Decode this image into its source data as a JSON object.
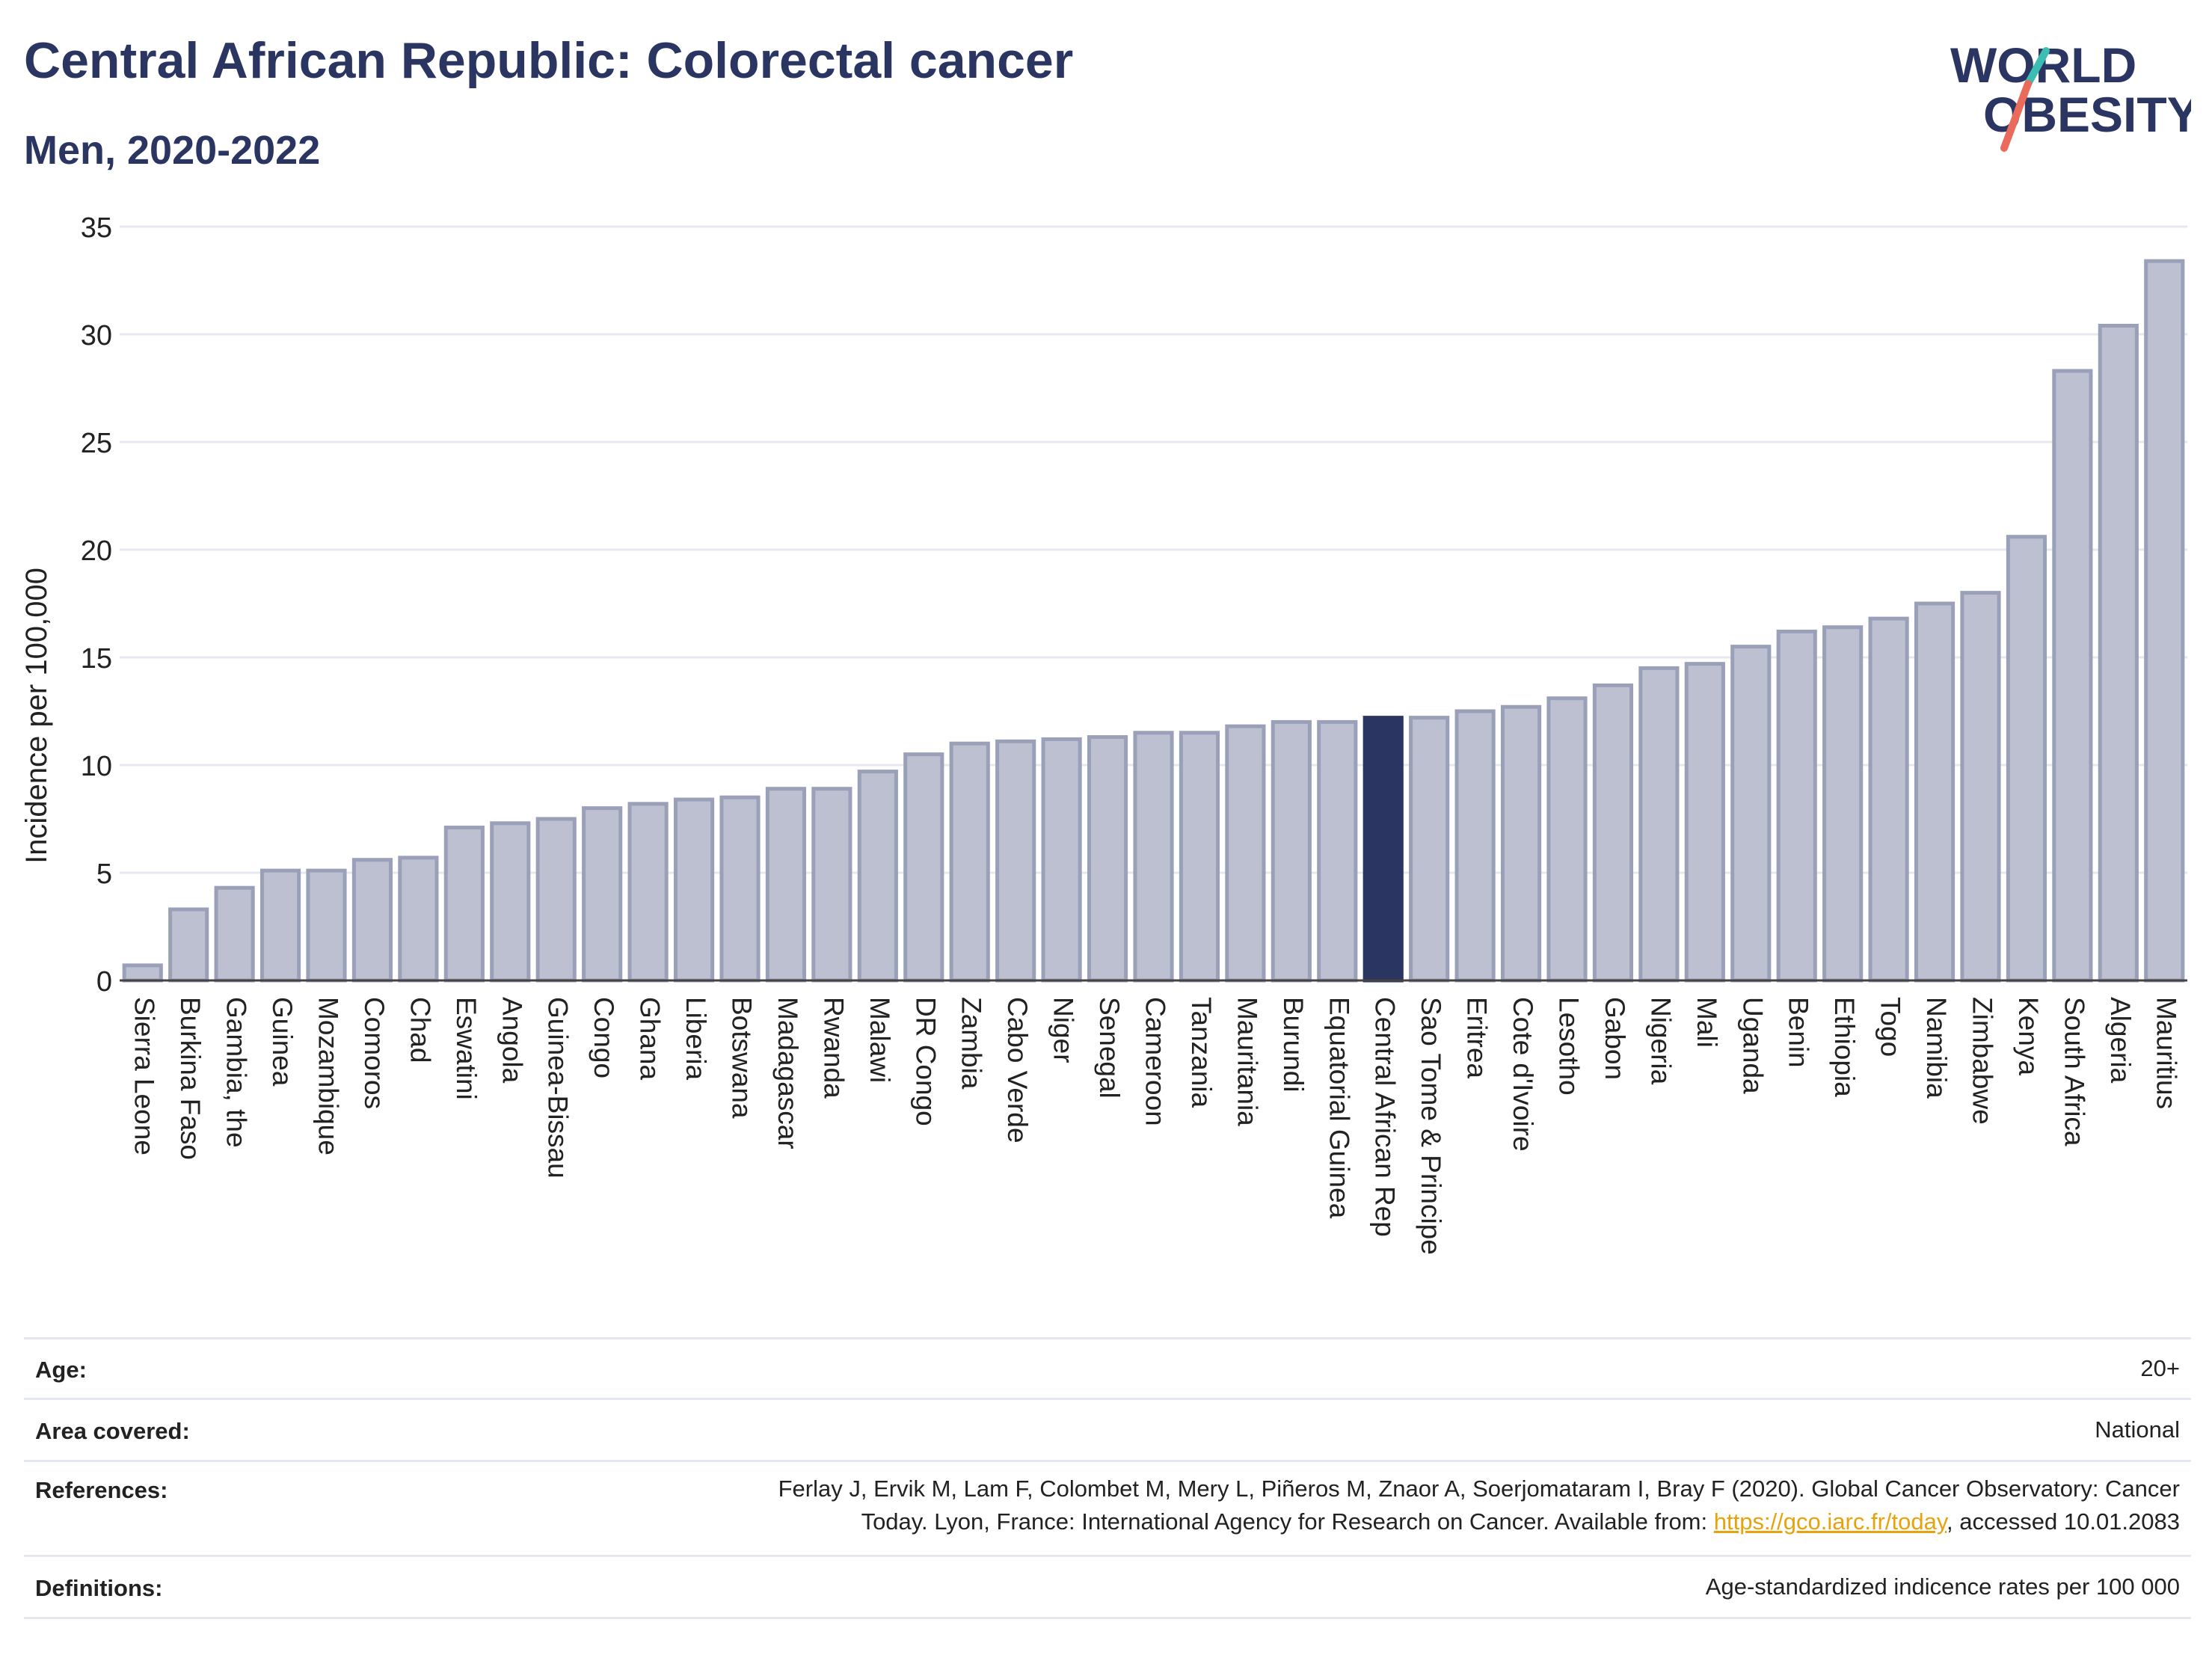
{
  "header": {
    "title": "Central African Republic: Colorectal cancer",
    "subtitle": "Men, 2020-2022"
  },
  "logo": {
    "line1": "WORLD",
    "line2": "OBESITY",
    "icon": "world-obesity-logo"
  },
  "colors": {
    "bar": "#bcc0d0",
    "bar_stroke": "#9aa0b8",
    "highlight": "#2b3562",
    "title": "#2b3562",
    "grid": "#e6e8ef",
    "link": "#e8a30c"
  },
  "chart_data": {
    "type": "bar",
    "ylabel": "Incidence per 100,000",
    "ylim": [
      0,
      35
    ],
    "yticks": [
      0,
      5,
      10,
      15,
      20,
      25,
      30,
      35
    ],
    "grid": true,
    "highlight": "Central African Rep",
    "categories": [
      "Sierra Leone",
      "Burkina Faso",
      "Gambia, the",
      "Guinea",
      "Mozambique",
      "Comoros",
      "Chad",
      "Eswatini",
      "Angola",
      "Guinea-Bissau",
      "Congo",
      "Ghana",
      "Liberia",
      "Botswana",
      "Madagascar",
      "Rwanda",
      "Malawi",
      "DR Congo",
      "Zambia",
      "Cabo Verde",
      "Niger",
      "Senegal",
      "Cameroon",
      "Tanzania",
      "Mauritania",
      "Burundi",
      "Equatorial Guinea",
      "Central African Rep",
      "Sao Tome & Principe",
      "Eritrea",
      "Cote d'Ivoire",
      "Lesotho",
      "Gabon",
      "Nigeria",
      "Mali",
      "Uganda",
      "Benin",
      "Ethiopia",
      "Togo",
      "Namibia",
      "Zimbabwe",
      "Kenya",
      "South Africa",
      "Algeria",
      "Mauritius"
    ],
    "values": [
      0.7,
      3.3,
      4.3,
      5.1,
      5.1,
      5.6,
      5.7,
      7.1,
      7.3,
      7.5,
      8.0,
      8.2,
      8.4,
      8.5,
      8.9,
      8.9,
      9.7,
      10.5,
      11.0,
      11.1,
      11.2,
      11.3,
      11.5,
      11.5,
      11.8,
      12.0,
      12.0,
      12.2,
      12.2,
      12.5,
      12.7,
      13.1,
      13.7,
      14.5,
      14.7,
      15.5,
      16.2,
      16.4,
      16.8,
      17.5,
      18.0,
      20.6,
      28.3,
      30.4,
      33.4
    ]
  },
  "info": {
    "age_label": "Age:",
    "age_value": "20+",
    "area_label": "Area covered:",
    "area_value": "National",
    "references_label": "References:",
    "references_line1": "Ferlay J, Ervik M, Lam F, Colombet M, Mery L, Piñeros M, Znaor A, Soerjomataram I, Bray F (2020). Global Cancer Observatory: Cancer",
    "references_line2_prefix": "Today. Lyon, France: International Agency for Research on Cancer. Available from: ",
    "references_link": "https://gco.iarc.fr/today",
    "references_line2_suffix": ", accessed 10.01.2083",
    "definitions_label": "Definitions:",
    "definitions_value": "Age-standardized indicence rates per 100 000"
  }
}
